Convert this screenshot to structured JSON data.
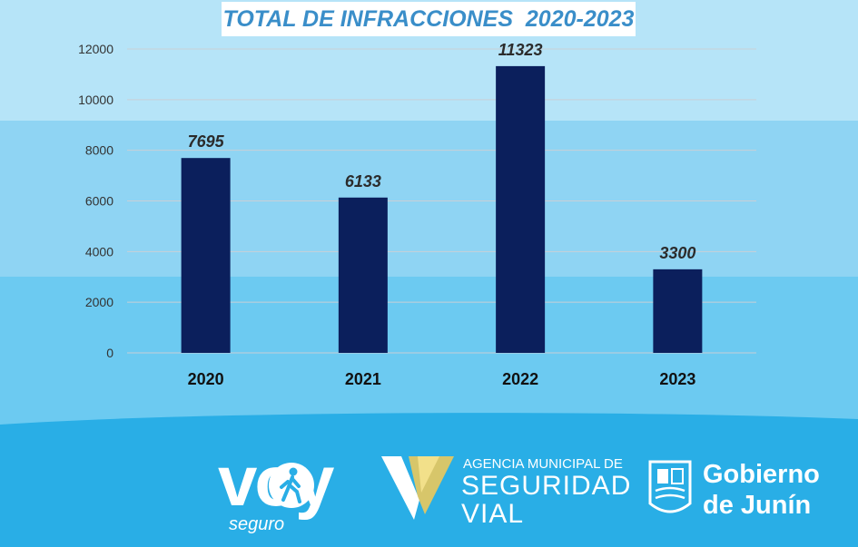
{
  "colors": {
    "bar": "#0b1f5c",
    "title_text": "#3a8ec9",
    "footer_bg": "#29aee6"
  },
  "chart_data": {
    "type": "bar",
    "title": "TOTAL DE INFRACCIONES  2020-2023",
    "categories": [
      "2020",
      "2021",
      "2022",
      "2023"
    ],
    "values": [
      7695,
      6133,
      11323,
      3300
    ],
    "data_labels": [
      "7695",
      "6133",
      "11323",
      "3300"
    ],
    "ylim": [
      0,
      12000
    ],
    "yticks": [
      0,
      2000,
      4000,
      6000,
      8000,
      10000,
      12000
    ],
    "ytick_labels": [
      "0",
      "2000",
      "4000",
      "6000",
      "8000",
      "10000",
      "12000"
    ],
    "grid": true,
    "xlabel": "",
    "ylabel": ""
  },
  "footer": {
    "voy_logo": {
      "text": "voy",
      "sub": "seguro",
      "icon": "pedestrian-icon"
    },
    "agencia_logo": {
      "line1": "AGENCIA MUNICIPAL DE",
      "line2": "SEGURIDAD",
      "line3": "VIAL",
      "icon": "v-mark-icon"
    },
    "gobierno_logo": {
      "line1": "Gobierno",
      "line2": "de Junín",
      "icon": "crest-icon"
    }
  }
}
